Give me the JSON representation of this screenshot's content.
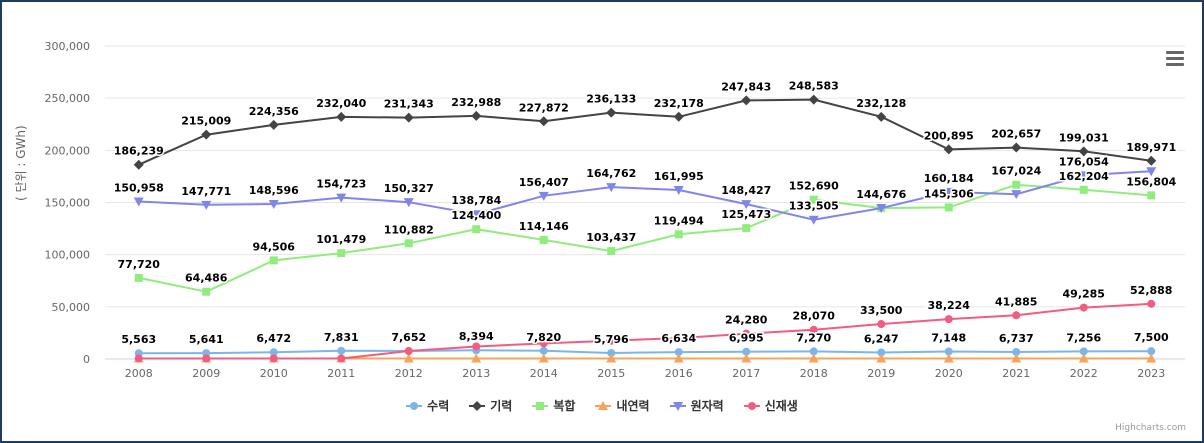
{
  "chart_data": {
    "type": "line",
    "title": "",
    "xlabel": "",
    "ylabel": "( 단위 : GWh)",
    "categories": [
      "2008",
      "2009",
      "2010",
      "2011",
      "2012",
      "2013",
      "2014",
      "2015",
      "2016",
      "2017",
      "2018",
      "2019",
      "2020",
      "2021",
      "2022",
      "2023"
    ],
    "ylim": [
      0,
      300000
    ],
    "yticks": [
      0,
      50000,
      100000,
      150000,
      200000,
      250000,
      300000
    ],
    "ytick_labels": [
      "0",
      "50,000",
      "100,000",
      "150,000",
      "200,000",
      "250,000",
      "300,000"
    ],
    "grid": true,
    "legend_position": "bottom-center",
    "series": [
      {
        "name": "수력",
        "color": "#7cb5ec",
        "marker": "circle",
        "values": [
          5563,
          5641,
          6472,
          7831,
          7652,
          8394,
          7820,
          5796,
          6634,
          6995,
          7270,
          6247,
          7148,
          6737,
          7256,
          7500
        ],
        "labels": [
          "5,563",
          "5,641",
          "6,472",
          "7,831",
          "7,652",
          "8,394",
          "7,820",
          "5,796",
          "6,634",
          "6,995",
          "7,270",
          "6,247",
          "7,148",
          "6,737",
          "7,256",
          "7,500"
        ],
        "show_labels": true
      },
      {
        "name": "기력",
        "color": "#434348",
        "marker": "diamond",
        "values": [
          186239,
          215009,
          224356,
          232040,
          231343,
          232988,
          227872,
          236133,
          232178,
          247843,
          248583,
          232128,
          200895,
          202657,
          199031,
          189971
        ],
        "labels": [
          "186,239",
          "215,009",
          "224,356",
          "232,040",
          "231,343",
          "232,988",
          "227,872",
          "236,133",
          "232,178",
          "247,843",
          "248,583",
          "232,128",
          "200,895",
          "202,657",
          "199,031",
          "189,971"
        ],
        "show_labels": true
      },
      {
        "name": "복합",
        "color": "#90ed7d",
        "marker": "square",
        "values": [
          77720,
          64486,
          94506,
          101479,
          110882,
          124400,
          114146,
          103437,
          119494,
          125473,
          152690,
          144676,
          145306,
          167024,
          162204,
          156804
        ],
        "labels": [
          "77,720",
          "64,486",
          "94,506",
          "101,479",
          "110,882",
          "124,400",
          "114,146",
          "103,437",
          "119,494",
          "125,473",
          "152,690",
          "144,676",
          "145,306",
          "167,024",
          "162,204",
          "156,804"
        ],
        "show_labels": true
      },
      {
        "name": "내연력",
        "color": "#f7a35c",
        "marker": "triangle",
        "values": [
          500,
          500,
          500,
          500,
          500,
          500,
          500,
          500,
          500,
          500,
          500,
          500,
          500,
          500,
          500,
          500
        ],
        "labels": [],
        "show_labels": false
      },
      {
        "name": "원자력",
        "color": "#8085e9",
        "marker": "triangle-down",
        "values": [
          150958,
          147771,
          148596,
          154723,
          150327,
          138784,
          156407,
          164762,
          161995,
          148427,
          133505,
          144676,
          160184,
          158000,
          176054,
          180000
        ],
        "labels": [
          "150,958",
          "147,771",
          "148,596",
          "154,723",
          "150,327",
          "138,784",
          "156,407",
          "164,762",
          "161,995",
          "148,427",
          "133,505",
          "",
          "160,184",
          "",
          "176,054",
          ""
        ],
        "show_labels": true
      },
      {
        "name": "신재생",
        "color": "#f15c80",
        "marker": "circle",
        "values": [
          500,
          500,
          500,
          500,
          7652,
          12000,
          15000,
          17500,
          20000,
          24280,
          28070,
          33500,
          38224,
          41885,
          49285,
          52888
        ],
        "labels": [
          "",
          "",
          "",
          "",
          "",
          "",
          "",
          "",
          "",
          "24,280",
          "28,070",
          "33,500",
          "38,224",
          "41,885",
          "49,285",
          "52,888"
        ],
        "show_labels": true
      }
    ]
  },
  "credits": "Highcharts.com"
}
